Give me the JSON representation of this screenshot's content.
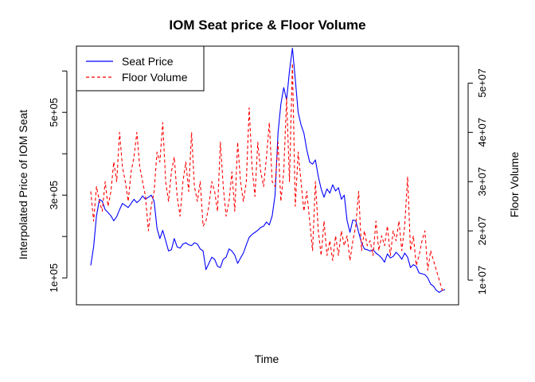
{
  "chart_data": {
    "type": "line",
    "title": "IOM Seat price & Floor Volume",
    "xlabel": "Time",
    "ylabel_left": "Interpolated Price of IOM Seat",
    "ylabel_right": "Floor Volume",
    "x_ticks_shown": false,
    "grid": false,
    "legend_position": "top-left",
    "left_axis": {
      "range": [
        35000,
        660000
      ],
      "ticks": [
        100000,
        200000,
        300000,
        400000,
        500000,
        600000
      ],
      "tick_labels": [
        "1e+05",
        "",
        "3e+05",
        "",
        "5e+05",
        ""
      ]
    },
    "right_axis": {
      "range": [
        5000000,
        57500000
      ],
      "ticks": [
        10000000,
        20000000,
        30000000,
        40000000,
        50000000
      ],
      "tick_labels": [
        "1e+07",
        "2e+07",
        "3e+07",
        "4e+07",
        "5e+07"
      ]
    },
    "series": [
      {
        "name": "Seat Price",
        "color": "#0000ff",
        "dash": "solid",
        "axis": "left",
        "values": [
          130000,
          175000,
          250000,
          290000,
          285000,
          265000,
          258000,
          250000,
          238000,
          248000,
          265000,
          280000,
          275000,
          270000,
          280000,
          290000,
          282000,
          288000,
          298000,
          290000,
          295000,
          300000,
          285000,
          220000,
          195000,
          215000,
          190000,
          165000,
          168000,
          195000,
          175000,
          172000,
          182000,
          185000,
          180000,
          178000,
          185000,
          182000,
          170000,
          165000,
          120000,
          135000,
          150000,
          145000,
          128000,
          125000,
          145000,
          150000,
          170000,
          165000,
          155000,
          135000,
          148000,
          160000,
          180000,
          198000,
          205000,
          210000,
          215000,
          222000,
          225000,
          235000,
          228000,
          250000,
          300000,
          450000,
          520000,
          560000,
          530000,
          600000,
          655000,
          580000,
          500000,
          470000,
          450000,
          410000,
          380000,
          375000,
          385000,
          345000,
          315000,
          295000,
          315000,
          305000,
          325000,
          310000,
          318000,
          290000,
          300000,
          238000,
          210000,
          240000,
          238000,
          210000,
          185000,
          170000,
          168000,
          165000,
          168000,
          160000,
          155000,
          148000,
          138000,
          158000,
          148000,
          152000,
          162000,
          155000,
          145000,
          160000,
          150000,
          125000,
          132000,
          128000,
          112000,
          110000,
          108000,
          100000,
          85000,
          80000,
          70000,
          65000,
          70000,
          72000
        ]
      },
      {
        "name": "Floor Volume",
        "color": "#ff0000",
        "dash": "dashed",
        "axis": "right",
        "values": [
          28000000,
          22000000,
          29000000,
          26000000,
          24000000,
          30000000,
          25000000,
          28000000,
          34000000,
          30000000,
          40000000,
          33000000,
          30000000,
          26000000,
          32000000,
          35000000,
          40000000,
          33000000,
          30000000,
          27000000,
          20000000,
          25000000,
          28000000,
          36000000,
          34000000,
          42000000,
          30000000,
          26000000,
          32000000,
          35000000,
          27000000,
          23000000,
          30000000,
          34000000,
          28000000,
          40000000,
          29000000,
          26000000,
          30000000,
          21000000,
          22000000,
          25000000,
          30000000,
          28000000,
          24000000,
          38000000,
          29000000,
          23000000,
          26000000,
          32000000,
          24000000,
          38000000,
          30000000,
          26000000,
          30000000,
          45000000,
          33000000,
          27000000,
          38000000,
          32000000,
          29000000,
          35000000,
          42000000,
          30000000,
          29000000,
          38000000,
          26000000,
          32000000,
          47000000,
          30000000,
          54000000,
          25000000,
          36000000,
          30000000,
          24000000,
          28000000,
          22000000,
          16000000,
          30000000,
          20000000,
          15000000,
          22000000,
          15000000,
          18000000,
          14000000,
          19000000,
          15000000,
          20000000,
          17000000,
          19000000,
          14000000,
          18000000,
          21000000,
          28000000,
          16000000,
          20000000,
          17000000,
          18000000,
          15000000,
          22000000,
          16000000,
          19000000,
          17000000,
          21000000,
          15000000,
          20000000,
          18000000,
          22000000,
          16000000,
          21000000,
          31000000,
          16000000,
          19000000,
          13000000,
          15000000,
          18000000,
          20000000,
          12000000,
          16000000,
          14000000,
          12000000,
          10000000,
          8000000,
          8000000
        ]
      }
    ]
  }
}
